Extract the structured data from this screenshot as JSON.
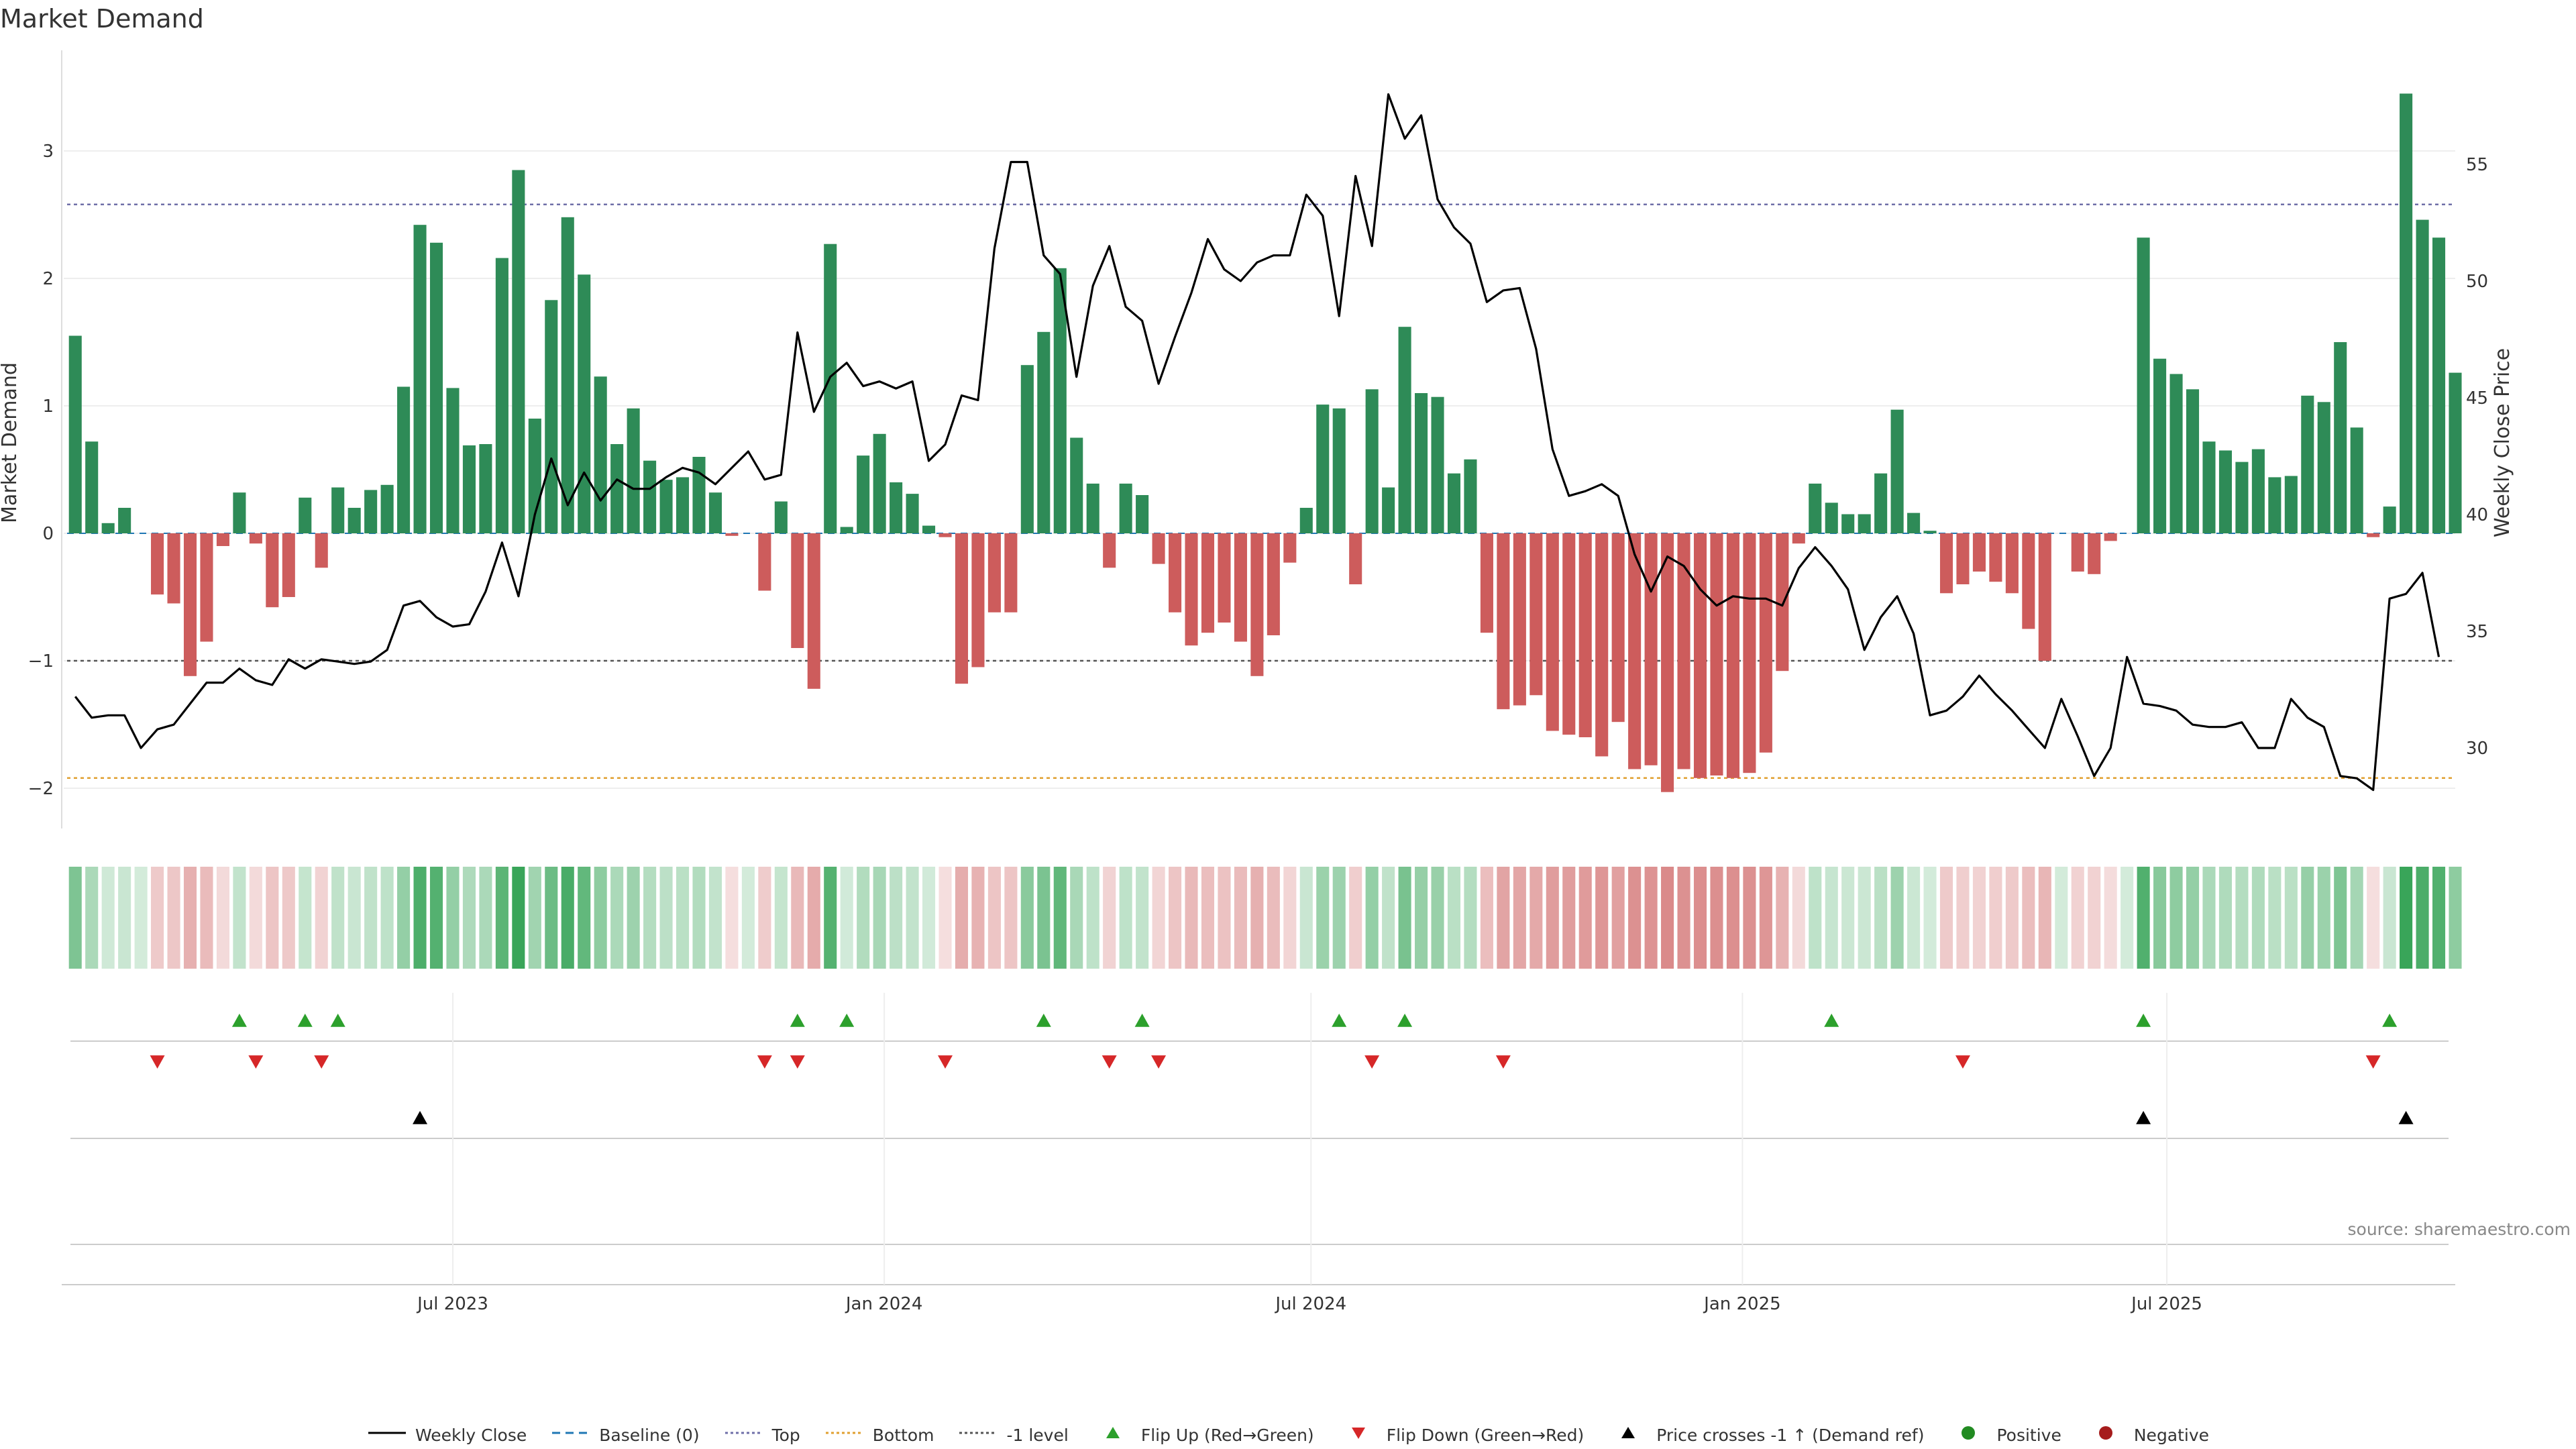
{
  "title": "Market Demand",
  "source": "source: sharemaestro.com",
  "chart_data": {
    "type": "bar",
    "ylabel_left": "Market Demand",
    "ylabel_right": "Weekly Close Price",
    "ylim_left": [
      -2.35,
      3.55
    ],
    "ylim_right": [
      27.0,
      58.5
    ],
    "yticks_left": [
      -2,
      -1,
      0,
      1,
      2,
      3
    ],
    "yticks_right": [
      30,
      35,
      40,
      45,
      50,
      55
    ],
    "xticks": [
      "Jul 2023",
      "Jan 2024",
      "Jul 2024",
      "Jan 2025",
      "Jul 2025"
    ],
    "reference_lines": {
      "top": 2.58,
      "bottom": -1.92,
      "minus_one_level": -1.0,
      "baseline": 0
    },
    "demand": [
      1.55,
      0.72,
      0.08,
      0.2,
      0.0,
      -0.48,
      -0.55,
      -1.12,
      -0.85,
      -0.1,
      0.32,
      -0.08,
      -0.58,
      -0.5,
      0.28,
      -0.27,
      0.36,
      0.2,
      0.34,
      0.38,
      1.15,
      2.42,
      2.28,
      1.14,
      0.69,
      0.7,
      2.16,
      2.85,
      0.9,
      1.83,
      2.48,
      2.03,
      1.23,
      0.7,
      0.98,
      0.57,
      0.42,
      0.44,
      0.6,
      0.32,
      -0.02,
      0.0,
      -0.45,
      0.25,
      -0.9,
      -1.22,
      2.27,
      0.05,
      0.61,
      0.78,
      0.4,
      0.31,
      0.06,
      -0.03,
      -1.18,
      -1.05,
      -0.62,
      -0.62,
      1.32,
      1.58,
      2.08,
      0.75,
      0.39,
      -0.27,
      0.39,
      0.3,
      -0.24,
      -0.62,
      -0.88,
      -0.78,
      -0.7,
      -0.85,
      -1.12,
      -0.8,
      -0.23,
      0.2,
      1.01,
      0.98,
      -0.4,
      1.13,
      0.36,
      1.62,
      1.1,
      1.07,
      0.47,
      0.58,
      -0.78,
      -1.38,
      -1.35,
      -1.27,
      -1.55,
      -1.58,
      -1.6,
      -1.75,
      -1.48,
      -1.85,
      -1.82,
      -2.03,
      -1.85,
      -1.92,
      -1.9,
      -1.92,
      -1.88,
      -1.72,
      -1.08,
      -0.08,
      0.39,
      0.24,
      0.15,
      0.15,
      0.47,
      0.97,
      0.16,
      0.02,
      -0.47,
      -0.4,
      -0.3,
      -0.38,
      -0.47,
      -0.75,
      -1.0,
      0.0,
      -0.3,
      -0.32,
      -0.06,
      0.0,
      2.32,
      1.37,
      1.25,
      1.13,
      0.72,
      0.65,
      0.56,
      0.66,
      0.44,
      0.45,
      1.08,
      1.03,
      1.5,
      0.83,
      -0.03,
      0.21,
      3.45,
      2.46,
      2.32,
      1.26
    ],
    "close": [
      32.2,
      31.3,
      31.4,
      31.4,
      30.0,
      30.8,
      31.0,
      31.9,
      32.8,
      32.8,
      33.4,
      32.9,
      32.7,
      33.8,
      33.4,
      33.8,
      33.7,
      33.6,
      33.7,
      34.2,
      36.1,
      36.3,
      35.6,
      35.2,
      35.3,
      36.7,
      38.8,
      36.5,
      40.0,
      42.4,
      40.4,
      41.8,
      40.6,
      41.5,
      41.1,
      41.1,
      41.6,
      42.0,
      41.8,
      41.3,
      42.0,
      42.7,
      41.5,
      41.7,
      47.8,
      44.4,
      45.9,
      46.5,
      45.5,
      45.7,
      45.4,
      45.7,
      42.3,
      43.0,
      45.1,
      44.9,
      51.4,
      55.1,
      55.1,
      51.1,
      50.3,
      45.9,
      49.8,
      51.5,
      48.9,
      48.3,
      45.6,
      47.6,
      49.5,
      51.8,
      50.5,
      50.0,
      50.8,
      51.1,
      51.1,
      53.7,
      52.8,
      48.5,
      54.5,
      51.5,
      58.0,
      56.1,
      57.1,
      53.5,
      52.3,
      51.6,
      49.1,
      49.6,
      49.7,
      47.1,
      42.8,
      40.8,
      41.0,
      41.3,
      40.8,
      38.3,
      36.7,
      38.2,
      37.8,
      36.8,
      36.1,
      36.5,
      36.4,
      36.4,
      36.1,
      37.7,
      38.6,
      37.8,
      36.8,
      34.2,
      35.6,
      36.5,
      34.9,
      31.4,
      31.6,
      32.2,
      33.1,
      32.3,
      31.6,
      30.8,
      30.0,
      32.1,
      30.5,
      28.8,
      30.0,
      33.9,
      31.9,
      31.8,
      31.6,
      31.0,
      30.9,
      30.9,
      31.1,
      30.0,
      30.0,
      32.1,
      31.3,
      30.9,
      28.8,
      28.7,
      28.2,
      36.4,
      36.6,
      37.5,
      33.9
    ],
    "flip_up_index": [
      10,
      14,
      16,
      44,
      47,
      59,
      65,
      77,
      81,
      107,
      126,
      141
    ],
    "flip_down_index": [
      5,
      11,
      15,
      42,
      44,
      53,
      63,
      66,
      79,
      87,
      115,
      140
    ],
    "price_cross_index": [
      21,
      126,
      142
    ],
    "x_start": "2023-01-21"
  },
  "legend": [
    {
      "label": "Weekly Close",
      "icon": "solid-line",
      "color": "#000000"
    },
    {
      "label": "Baseline (0)",
      "icon": "dashed-line",
      "color": "#1f77b4"
    },
    {
      "label": "Top",
      "icon": "dotted-line",
      "color": "#6f6fa8"
    },
    {
      "label": "Bottom",
      "icon": "dotted-line",
      "color": "#e0a030"
    },
    {
      "label": "-1 level",
      "icon": "dotted-line",
      "color": "#555555"
    },
    {
      "label": "Flip Up (Red→Green)",
      "icon": "triangle-up",
      "color": "#2ca02c"
    },
    {
      "label": "Flip Down (Green→Red)",
      "icon": "triangle-down",
      "color": "#d62728"
    },
    {
      "label": "Price crosses -1 ↑ (Demand ref)",
      "icon": "triangle-up",
      "color": "#000000"
    },
    {
      "label": "Positive",
      "icon": "circle",
      "color": "#228b22"
    },
    {
      "label": "Negative",
      "icon": "circle",
      "color": "#a61c1c"
    }
  ],
  "colors": {
    "positive": "#2e8b57",
    "negative": "#cd5c5c",
    "close": "#000000"
  }
}
